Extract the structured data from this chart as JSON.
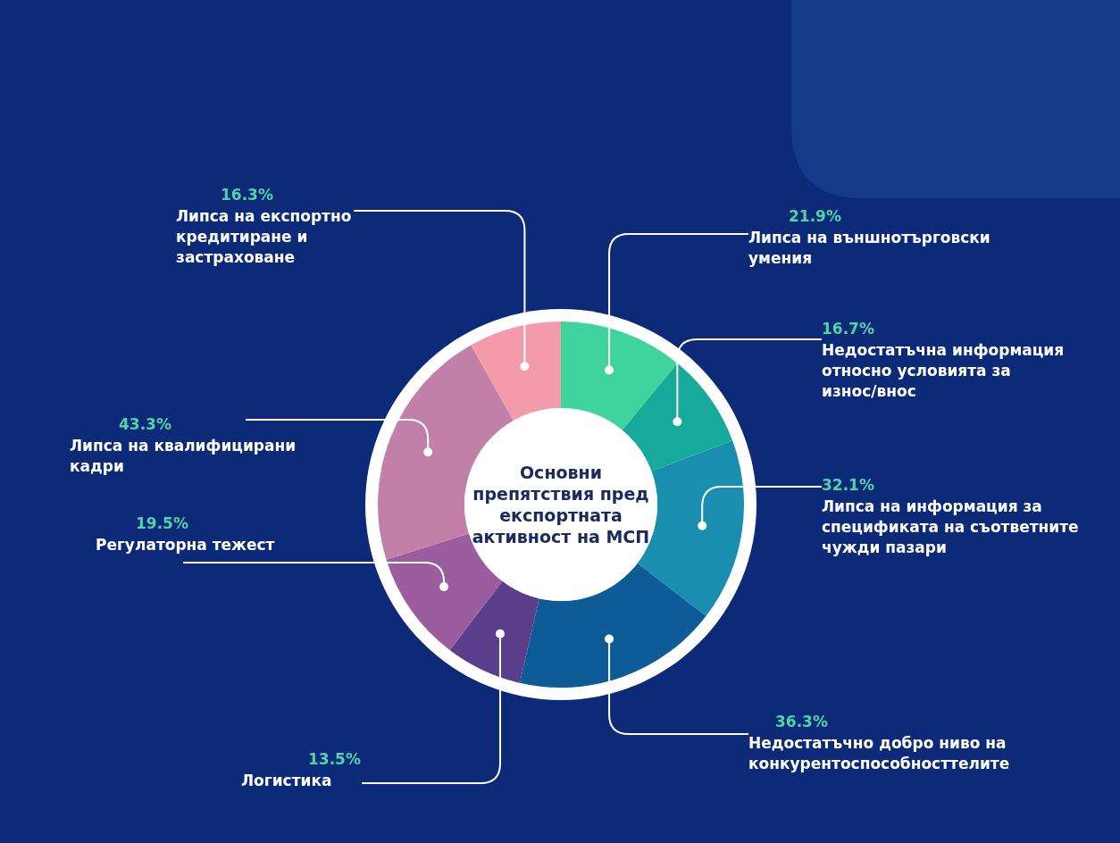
{
  "chart_data": {
    "type": "donut",
    "title": "Основни препятствия пред експортната активност на МСП",
    "categories": [
      "Липса на външнотърговски умения",
      "Недостатъчна информация относно условията за износ/внос",
      "Липса на информация за спецификата на съответните чужди пазари",
      "Недостатъчно добро ниво на конкурентоспособносттелите",
      "Логистика",
      "Регулаторна тежест",
      "Липса на квалифицирани кадри",
      "Липса на експортно кредитиране и застраховане"
    ],
    "values": [
      21.9,
      16.7,
      32.1,
      36.3,
      13.5,
      19.5,
      43.3,
      16.3
    ],
    "value_labels": [
      "21.9%",
      "16.7%",
      "32.1%",
      "36.3%",
      "13.5%",
      "19.5%",
      "43.3%",
      "16.3%"
    ],
    "colors": [
      "#3fd39e",
      "#17a99a",
      "#1a8eae",
      "#0e5c97",
      "#5b3f8c",
      "#9b5d9e",
      "#c27fa8",
      "#f39aab"
    ]
  }
}
